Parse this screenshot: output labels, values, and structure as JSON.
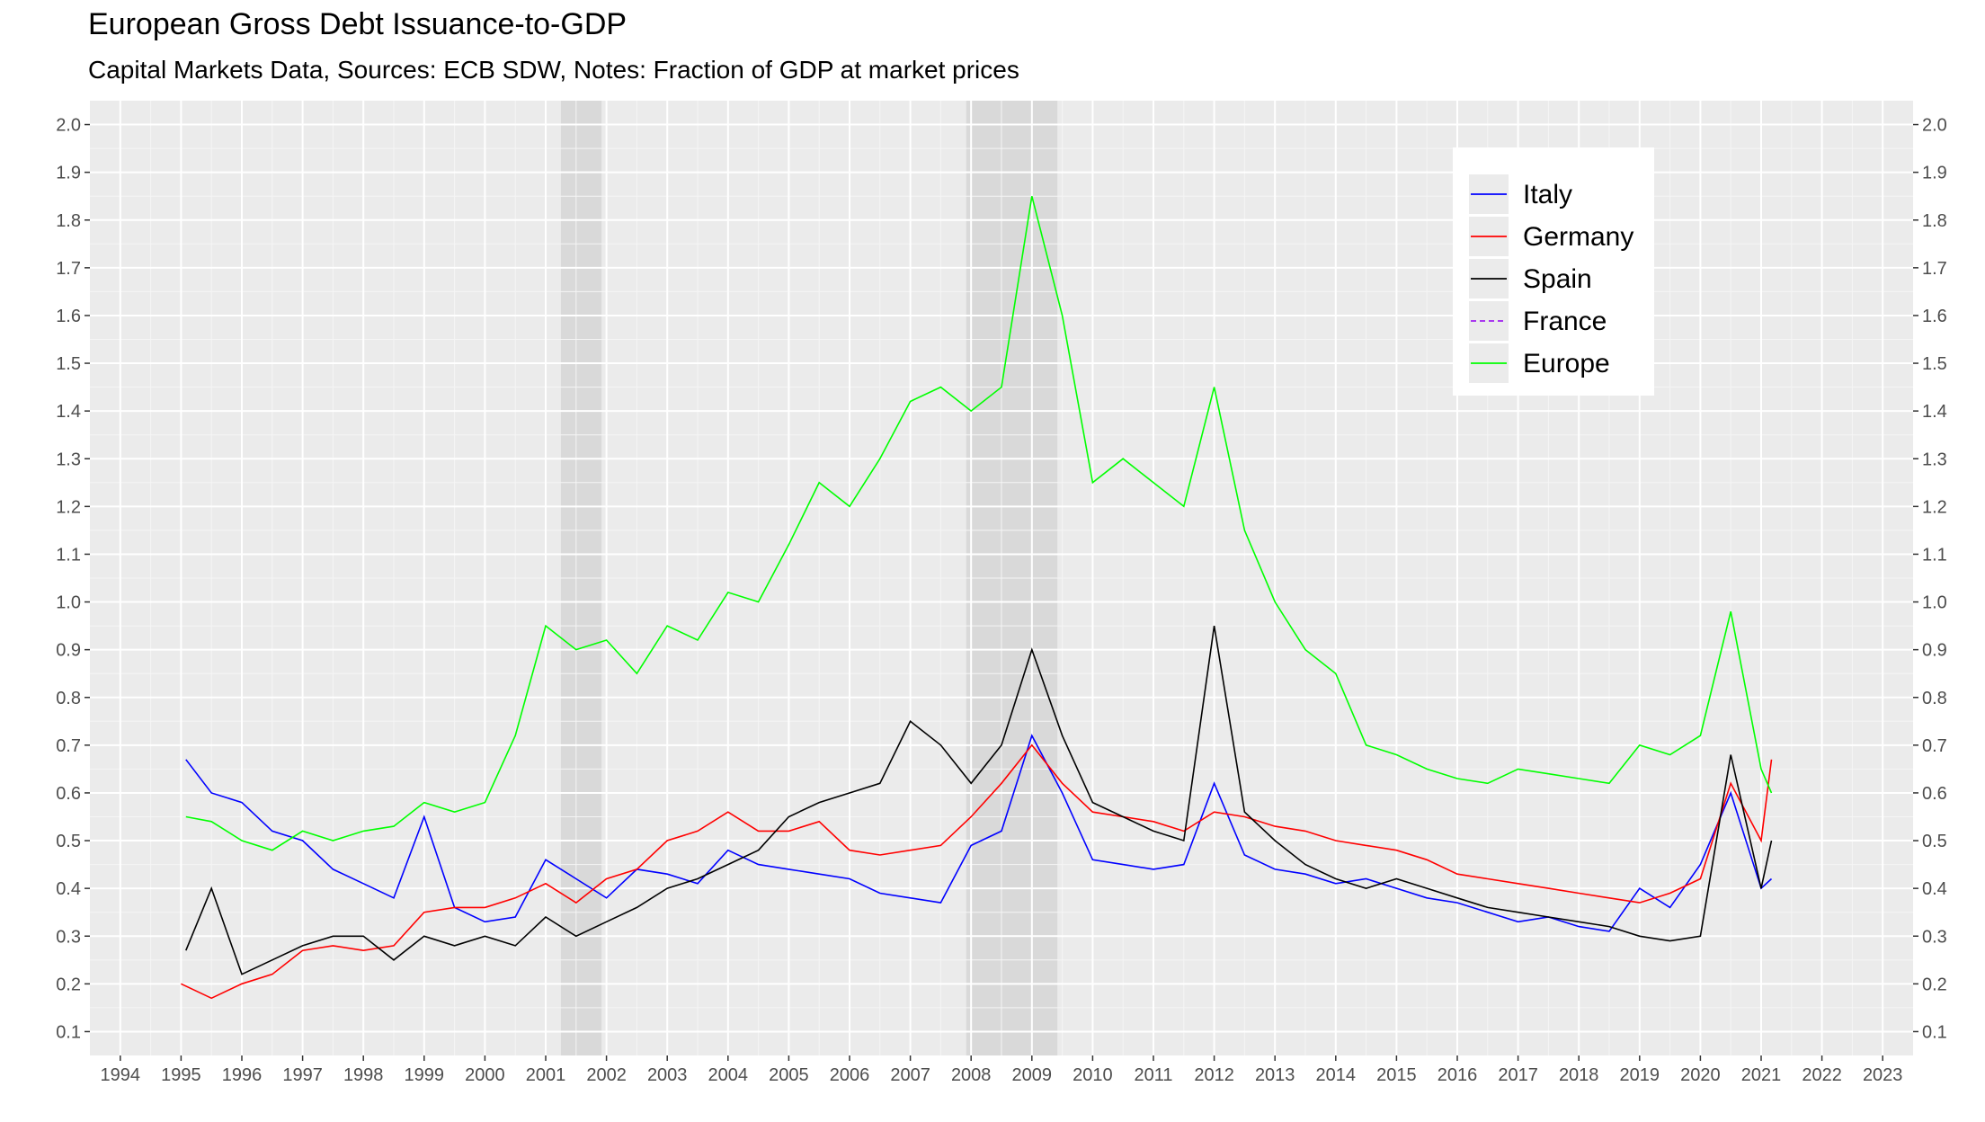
{
  "chart_data": {
    "type": "line",
    "title": "European Gross Debt Issuance-to-GDP",
    "subtitle": "Capital Markets Data, Sources: ECB SDW, Notes: Fraction of GDP at market prices",
    "xlabel": "",
    "ylabel": "",
    "xlim": [
      1994,
      2023
    ],
    "ylim": [
      0.1,
      2.0
    ],
    "x_ticks": [
      1994,
      1995,
      1996,
      1997,
      1998,
      1999,
      2000,
      2001,
      2002,
      2003,
      2004,
      2005,
      2006,
      2007,
      2008,
      2009,
      2010,
      2011,
      2012,
      2013,
      2014,
      2015,
      2016,
      2017,
      2018,
      2019,
      2020,
      2021,
      2022,
      2023
    ],
    "y_ticks": [
      0.1,
      0.2,
      0.3,
      0.4,
      0.5,
      0.6,
      0.7,
      0.8,
      0.9,
      1.0,
      1.1,
      1.2,
      1.3,
      1.4,
      1.5,
      1.6,
      1.7,
      1.8,
      1.9,
      2.0
    ],
    "y_tick_labels": [
      "0.1",
      "0.2",
      "0.3",
      "0.4",
      "0.5",
      "0.6",
      "0.7",
      "0.8",
      "0.9",
      "1.0",
      "1.1",
      "1.2",
      "1.3",
      "1.4",
      "1.5",
      "1.6",
      "1.7",
      "1.8",
      "1.9",
      "2.0"
    ],
    "recession_bands": [
      [
        2001.25,
        2001.92
      ],
      [
        2007.92,
        2009.42
      ]
    ],
    "grid": true,
    "secondary_y_axis": true,
    "legend_position": "top-right",
    "legend": [
      "Italy",
      "Germany",
      "Spain",
      "France",
      "Europe"
    ],
    "series": [
      {
        "name": "Italy",
        "color": "#0000ff",
        "dash": "solid",
        "x": [
          1995.08,
          1995.5,
          1996.0,
          1996.5,
          1997.0,
          1997.5,
          1998.0,
          1998.5,
          1999.0,
          1999.5,
          2000.0,
          2000.5,
          2001.0,
          2001.5,
          2002.0,
          2002.5,
          2003.0,
          2003.5,
          2004.0,
          2004.5,
          2005.0,
          2005.5,
          2006.0,
          2006.5,
          2007.0,
          2007.5,
          2008.0,
          2008.5,
          2009.0,
          2009.5,
          2010.0,
          2010.5,
          2011.0,
          2011.5,
          2012.0,
          2012.5,
          2013.0,
          2013.5,
          2014.0,
          2014.5,
          2015.0,
          2015.5,
          2016.0,
          2016.5,
          2017.0,
          2017.5,
          2018.0,
          2018.5,
          2019.0,
          2019.5,
          2020.0,
          2020.5,
          2021.0,
          2021.17
        ],
        "y": [
          0.67,
          0.6,
          0.58,
          0.52,
          0.5,
          0.44,
          0.41,
          0.38,
          0.55,
          0.36,
          0.33,
          0.34,
          0.46,
          0.42,
          0.38,
          0.44,
          0.43,
          0.41,
          0.48,
          0.45,
          0.44,
          0.43,
          0.42,
          0.39,
          0.38,
          0.37,
          0.49,
          0.52,
          0.72,
          0.6,
          0.46,
          0.45,
          0.44,
          0.45,
          0.62,
          0.47,
          0.44,
          0.43,
          0.41,
          0.42,
          0.4,
          0.38,
          0.37,
          0.35,
          0.33,
          0.34,
          0.32,
          0.31,
          0.4,
          0.36,
          0.45,
          0.6,
          0.4,
          0.42
        ]
      },
      {
        "name": "Germany",
        "color": "#ff0000",
        "dash": "solid",
        "x": [
          1995.0,
          1995.5,
          1996.0,
          1996.5,
          1997.0,
          1997.5,
          1998.0,
          1998.5,
          1999.0,
          1999.5,
          2000.0,
          2000.5,
          2001.0,
          2001.5,
          2002.0,
          2002.5,
          2003.0,
          2003.5,
          2004.0,
          2004.5,
          2005.0,
          2005.5,
          2006.0,
          2006.5,
          2007.0,
          2007.5,
          2008.0,
          2008.5,
          2009.0,
          2009.5,
          2010.0,
          2010.5,
          2011.0,
          2011.5,
          2012.0,
          2012.5,
          2013.0,
          2013.5,
          2014.0,
          2014.5,
          2015.0,
          2015.5,
          2016.0,
          2016.5,
          2017.0,
          2017.5,
          2018.0,
          2018.5,
          2019.0,
          2019.5,
          2020.0,
          2020.5,
          2021.0,
          2021.17
        ],
        "y": [
          0.2,
          0.17,
          0.2,
          0.22,
          0.27,
          0.28,
          0.27,
          0.28,
          0.35,
          0.36,
          0.36,
          0.38,
          0.41,
          0.37,
          0.42,
          0.44,
          0.5,
          0.52,
          0.56,
          0.52,
          0.52,
          0.54,
          0.48,
          0.47,
          0.48,
          0.49,
          0.55,
          0.62,
          0.7,
          0.62,
          0.56,
          0.55,
          0.54,
          0.52,
          0.56,
          0.55,
          0.53,
          0.52,
          0.5,
          0.49,
          0.48,
          0.46,
          0.43,
          0.42,
          0.41,
          0.4,
          0.39,
          0.38,
          0.37,
          0.39,
          0.42,
          0.62,
          0.5,
          0.67
        ]
      },
      {
        "name": "Spain",
        "color": "#000000",
        "dash": "solid",
        "x": [
          1995.08,
          1995.5,
          1996.0,
          1996.5,
          1997.0,
          1997.5,
          1998.0,
          1998.5,
          1999.0,
          1999.5,
          2000.0,
          2000.5,
          2001.0,
          2001.5,
          2002.0,
          2002.5,
          2003.0,
          2003.5,
          2004.0,
          2004.5,
          2005.0,
          2005.5,
          2006.0,
          2006.5,
          2007.0,
          2007.5,
          2008.0,
          2008.5,
          2009.0,
          2009.5,
          2010.0,
          2010.5,
          2011.0,
          2011.5,
          2012.0,
          2012.5,
          2013.0,
          2013.5,
          2014.0,
          2014.5,
          2015.0,
          2015.5,
          2016.0,
          2016.5,
          2017.0,
          2017.5,
          2018.0,
          2018.5,
          2019.0,
          2019.5,
          2020.0,
          2020.5,
          2021.0,
          2021.17
        ],
        "y": [
          0.27,
          0.4,
          0.22,
          0.25,
          0.28,
          0.3,
          0.3,
          0.25,
          0.3,
          0.28,
          0.3,
          0.28,
          0.34,
          0.3,
          0.33,
          0.36,
          0.4,
          0.42,
          0.45,
          0.48,
          0.55,
          0.58,
          0.6,
          0.62,
          0.75,
          0.7,
          0.62,
          0.7,
          0.9,
          0.72,
          0.58,
          0.55,
          0.52,
          0.5,
          0.95,
          0.56,
          0.5,
          0.45,
          0.42,
          0.4,
          0.42,
          0.4,
          0.38,
          0.36,
          0.35,
          0.34,
          0.33,
          0.32,
          0.3,
          0.29,
          0.3,
          0.68,
          0.4,
          0.5
        ]
      },
      {
        "name": "France",
        "color": "#a020f0",
        "dash": "dashed",
        "x": [],
        "y": []
      },
      {
        "name": "Europe",
        "color": "#00ff00",
        "dash": "solid",
        "x": [
          1995.08,
          1995.5,
          1996.0,
          1996.5,
          1997.0,
          1997.5,
          1998.0,
          1998.5,
          1999.0,
          1999.5,
          2000.0,
          2000.5,
          2001.0,
          2001.5,
          2002.0,
          2002.5,
          2003.0,
          2003.5,
          2004.0,
          2004.5,
          2005.0,
          2005.5,
          2006.0,
          2006.5,
          2007.0,
          2007.5,
          2008.0,
          2008.5,
          2009.0,
          2009.5,
          2010.0,
          2010.5,
          2011.0,
          2011.5,
          2012.0,
          2012.5,
          2013.0,
          2013.5,
          2014.0,
          2014.5,
          2015.0,
          2015.5,
          2016.0,
          2016.5,
          2017.0,
          2017.5,
          2018.0,
          2018.5,
          2019.0,
          2019.5,
          2020.0,
          2020.5,
          2021.0,
          2021.17
        ],
        "y": [
          0.55,
          0.54,
          0.5,
          0.48,
          0.52,
          0.5,
          0.52,
          0.53,
          0.58,
          0.56,
          0.58,
          0.72,
          0.95,
          0.9,
          0.92,
          0.85,
          0.95,
          0.92,
          1.02,
          1.0,
          1.12,
          1.25,
          1.2,
          1.3,
          1.42,
          1.45,
          1.4,
          1.45,
          1.85,
          1.6,
          1.25,
          1.3,
          1.25,
          1.2,
          1.45,
          1.15,
          1.0,
          0.9,
          0.85,
          0.7,
          0.68,
          0.65,
          0.63,
          0.62,
          0.65,
          0.64,
          0.63,
          0.62,
          0.7,
          0.68,
          0.72,
          0.98,
          0.65,
          0.6
        ]
      }
    ]
  }
}
